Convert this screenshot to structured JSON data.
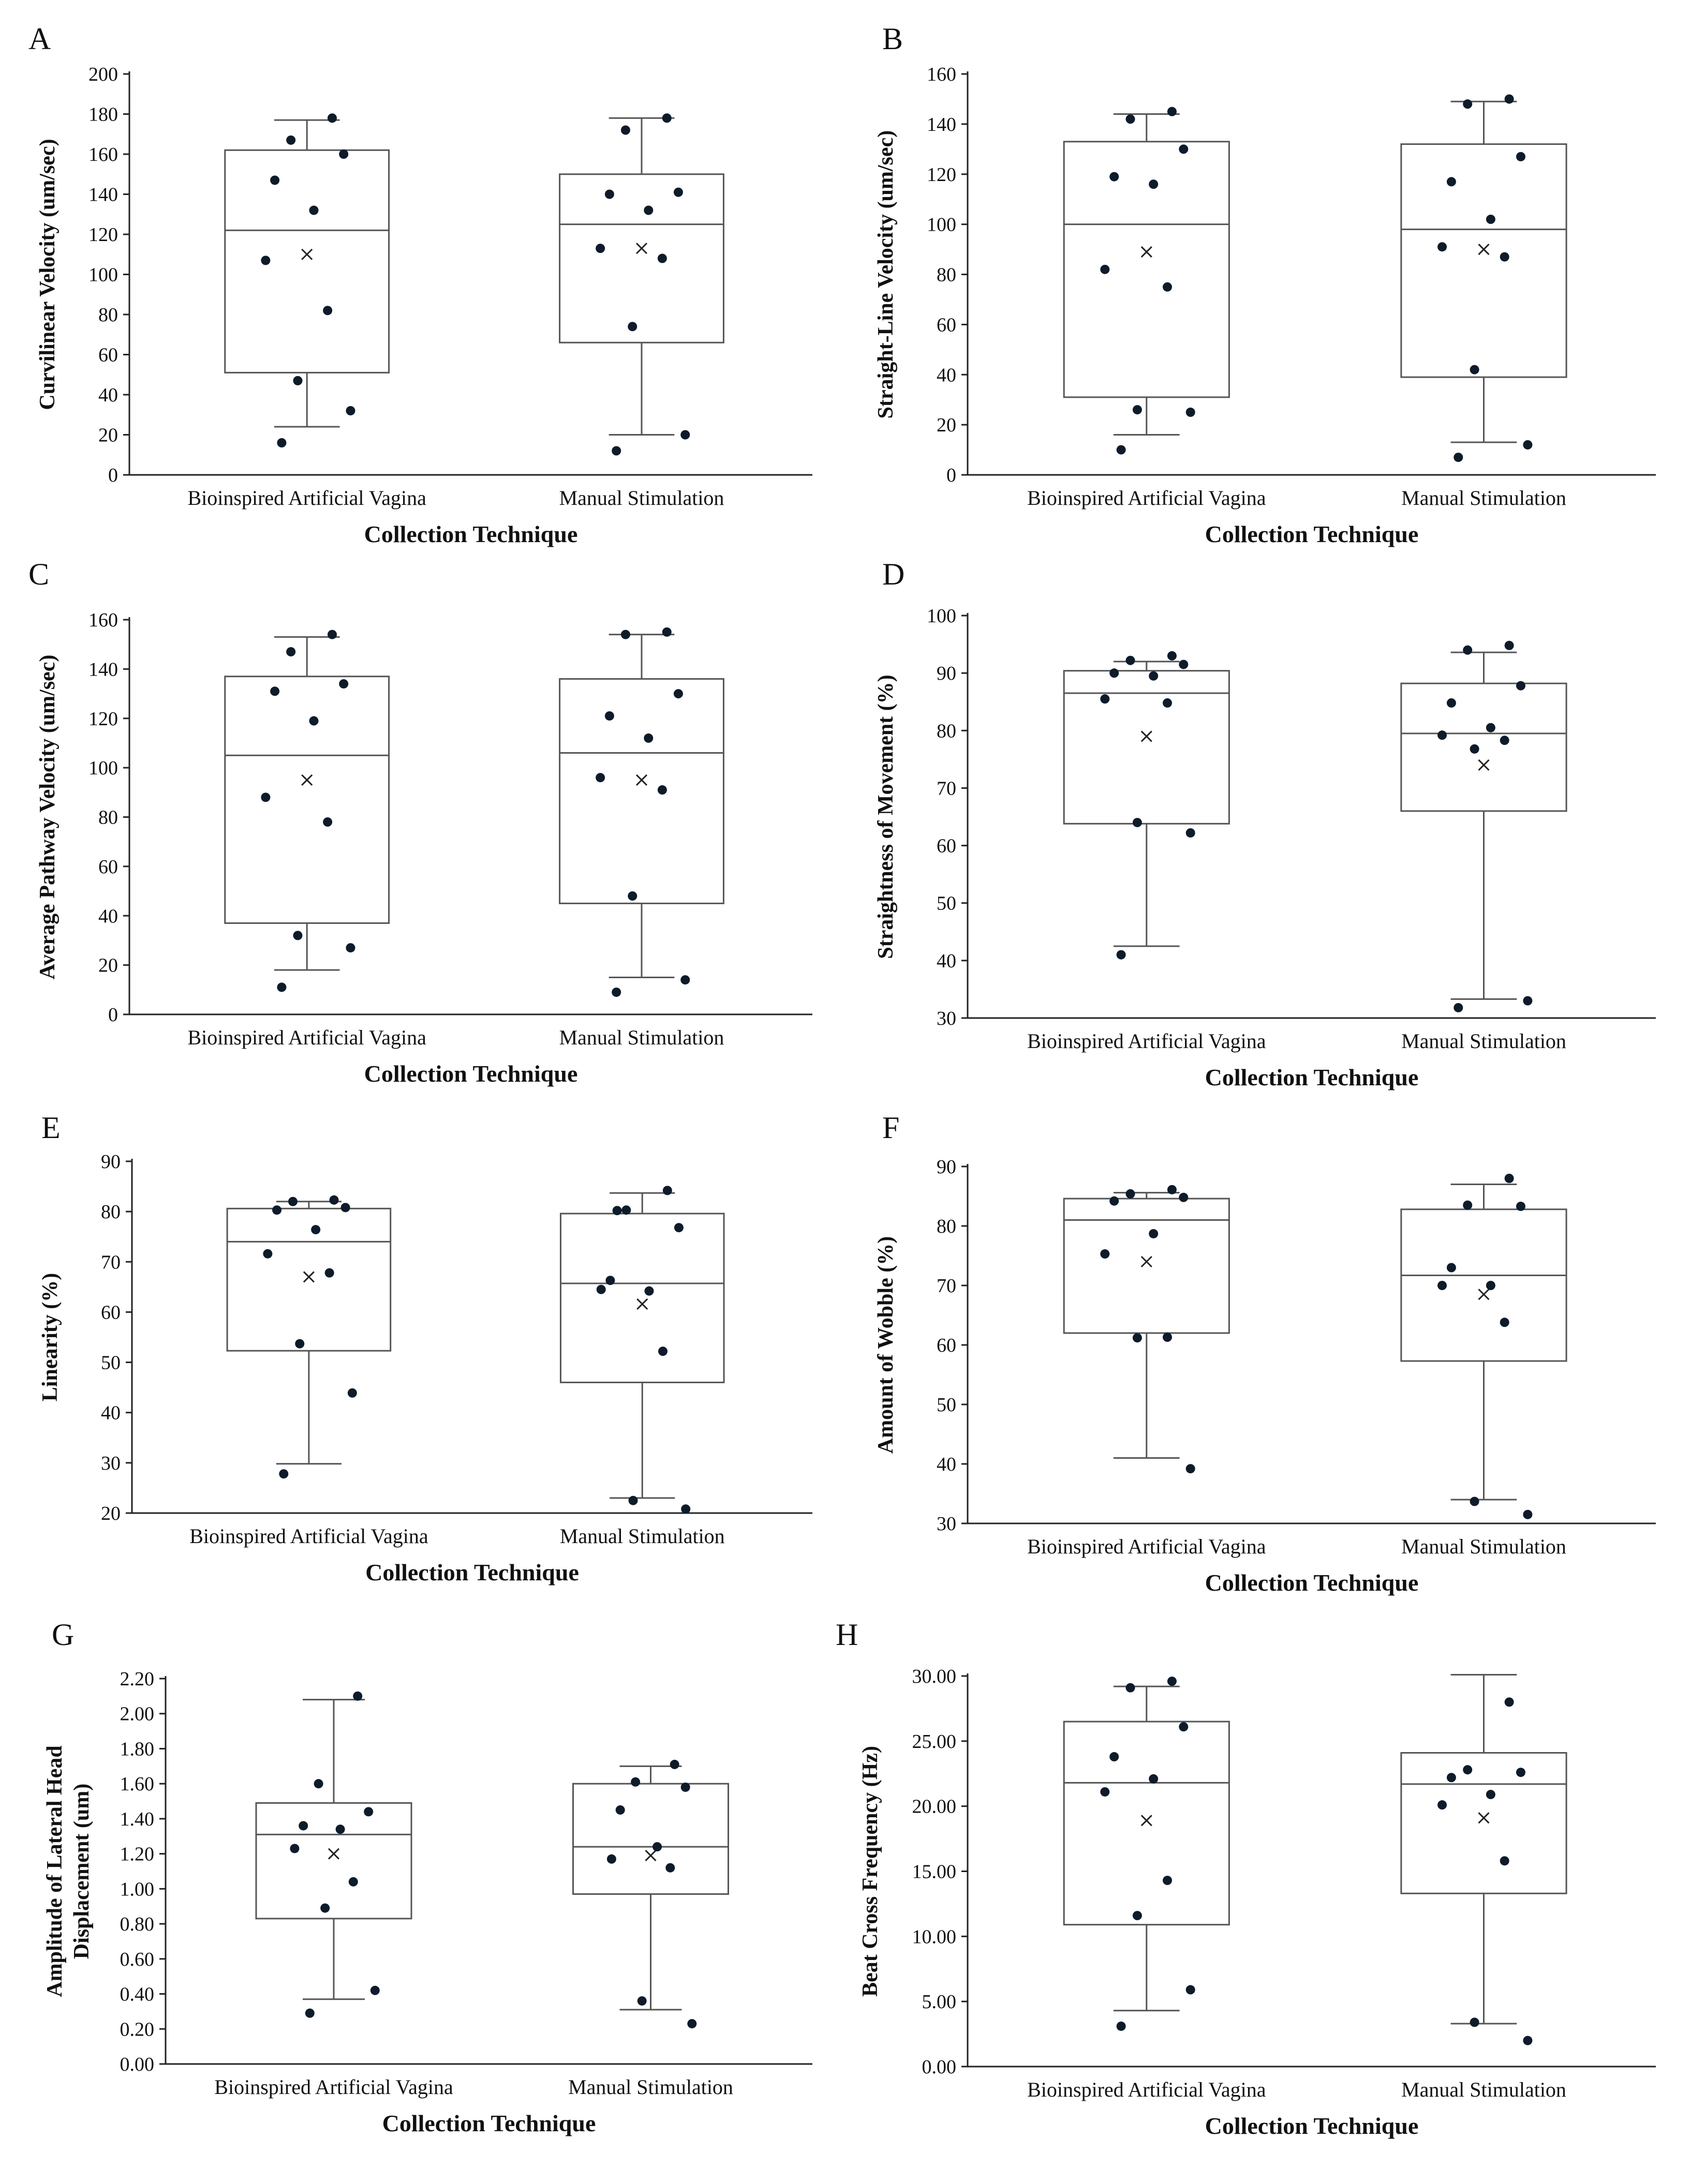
{
  "figure": {
    "background": "#ffffff",
    "box_color": "#555555",
    "point_color": "#0d1b2a"
  },
  "chart_data": [
    {
      "id": "A",
      "type": "box",
      "ylabel": "Curvilinear Velocity (um/sec)",
      "xlabel": "Collection Technique",
      "ylim": [
        0,
        200
      ],
      "yticks": [
        0,
        20,
        40,
        60,
        80,
        100,
        120,
        140,
        160,
        180,
        200
      ],
      "tick_decimals": 0,
      "categories": [
        "Bioinspired Artificial Vagina",
        "Manual Stimulation"
      ],
      "boxes": [
        {
          "min": 24,
          "q1": 51,
          "median": 122,
          "q3": 162,
          "max": 177,
          "mean": 110,
          "points": [
            178,
            167,
            160,
            147,
            132,
            107,
            82,
            47,
            32,
            16
          ]
        },
        {
          "min": 20,
          "q1": 66,
          "median": 125,
          "q3": 150,
          "max": 178,
          "mean": 113,
          "points": [
            178,
            172,
            141,
            140,
            132,
            113,
            108,
            74,
            20,
            12
          ]
        }
      ]
    },
    {
      "id": "B",
      "type": "box",
      "ylabel": "Straight-Line Velocity (um/sec)",
      "xlabel": "Collection Technique",
      "ylim": [
        0,
        160
      ],
      "yticks": [
        0,
        20,
        40,
        60,
        80,
        100,
        120,
        140,
        160
      ],
      "tick_decimals": 0,
      "categories": [
        "Bioinspired Artificial Vagina",
        "Manual Stimulation"
      ],
      "boxes": [
        {
          "min": 16,
          "q1": 31,
          "median": 100,
          "q3": 133,
          "max": 144,
          "mean": 89,
          "points": [
            145,
            142,
            130,
            119,
            116,
            82,
            75,
            26,
            25,
            10
          ]
        },
        {
          "min": 13,
          "q1": 39,
          "median": 98,
          "q3": 132,
          "max": 149,
          "mean": 90,
          "points": [
            150,
            148,
            127,
            117,
            102,
            91,
            87,
            42,
            12,
            7
          ]
        }
      ]
    },
    {
      "id": "C",
      "type": "box",
      "ylabel": "Average Pathway Velocity (um/sec)",
      "xlabel": "Collection Technique",
      "ylim": [
        0,
        160
      ],
      "yticks": [
        0,
        20,
        40,
        60,
        80,
        100,
        120,
        140,
        160
      ],
      "tick_decimals": 0,
      "categories": [
        "Bioinspired Artificial Vagina",
        "Manual Stimulation"
      ],
      "boxes": [
        {
          "min": 18,
          "q1": 37,
          "median": 105,
          "q3": 137,
          "max": 153,
          "mean": 95,
          "points": [
            154,
            147,
            134,
            131,
            119,
            88,
            78,
            32,
            27,
            11
          ]
        },
        {
          "min": 15,
          "q1": 45,
          "median": 106,
          "q3": 136,
          "max": 154,
          "mean": 95,
          "points": [
            155,
            154,
            130,
            121,
            112,
            96,
            91,
            48,
            14,
            9
          ]
        }
      ]
    },
    {
      "id": "D",
      "type": "box",
      "ylabel": "Straightness of Movement (%)",
      "xlabel": "Collection Technique",
      "ylim": [
        30,
        100
      ],
      "yticks": [
        30,
        40,
        50,
        60,
        70,
        80,
        90,
        100
      ],
      "tick_decimals": 0,
      "categories": [
        "Bioinspired Artificial Vagina",
        "Manual Stimulation"
      ],
      "boxes": [
        {
          "min": 42.5,
          "q1": 63.8,
          "median": 86.5,
          "q3": 90.4,
          "max": 92,
          "mean": 79,
          "points": [
            93,
            92.2,
            91.5,
            90,
            89.5,
            85.5,
            84.8,
            64,
            62.2,
            41
          ]
        },
        {
          "min": 33.3,
          "q1": 66,
          "median": 79.5,
          "q3": 88.2,
          "max": 93.6,
          "mean": 74,
          "points": [
            94.8,
            94,
            87.8,
            84.8,
            80.5,
            79.2,
            78.3,
            76.8,
            33,
            31.8
          ]
        }
      ]
    },
    {
      "id": "E",
      "type": "box",
      "ylabel": "Linearity (%)",
      "xlabel": "Collection Technique",
      "ylim": [
        20,
        90
      ],
      "yticks": [
        20,
        30,
        40,
        50,
        60,
        70,
        80,
        90
      ],
      "tick_decimals": 0,
      "categories": [
        "Bioinspired Artificial Vagina",
        "Manual Stimulation"
      ],
      "boxes": [
        {
          "min": 29.8,
          "q1": 52.3,
          "median": 74,
          "q3": 80.6,
          "max": 82,
          "mean": 67,
          "points": [
            82.3,
            82,
            80.8,
            80.3,
            76.4,
            71.6,
            67.8,
            53.7,
            43.9,
            27.8
          ]
        },
        {
          "min": 23,
          "q1": 46,
          "median": 65.7,
          "q3": 79.6,
          "max": 83.7,
          "mean": 61.6,
          "points": [
            84.2,
            80.3,
            76.8,
            66.3,
            64.2,
            64.5,
            52.2,
            22.5,
            20.8,
            80.2
          ]
        }
      ]
    },
    {
      "id": "F",
      "type": "box",
      "ylabel": "Amount of Wobble (%)",
      "xlabel": "Collection Technique",
      "ylim": [
        30,
        90
      ],
      "yticks": [
        30,
        40,
        50,
        60,
        70,
        80,
        90
      ],
      "tick_decimals": 0,
      "categories": [
        "Bioinspired Artificial Vagina",
        "Manual Stimulation"
      ],
      "boxes": [
        {
          "min": 41,
          "q1": 62,
          "median": 81,
          "q3": 84.6,
          "max": 85.6,
          "mean": 74,
          "points": [
            86.1,
            85.4,
            84.8,
            84.2,
            78.7,
            75.3,
            61.3,
            61.2,
            39.2
          ]
        },
        {
          "min": 34,
          "q1": 57.3,
          "median": 71.7,
          "q3": 82.8,
          "max": 87,
          "mean": 68.5,
          "points": [
            88,
            83.5,
            83.3,
            73,
            70,
            70,
            63.8,
            33.7,
            31.5
          ]
        }
      ]
    },
    {
      "id": "G",
      "type": "box",
      "ylabel": "Amplitude of Lateral Head Displacement (um)",
      "xlabel": "Collection Technique",
      "ylim": [
        0,
        2.2
      ],
      "yticks": [
        0,
        0.2,
        0.4,
        0.6,
        0.8,
        1.0,
        1.2,
        1.4,
        1.6,
        1.8,
        2.0,
        2.2
      ],
      "tick_decimals": 2,
      "categories": [
        "Bioinspired Artificial Vagina",
        "Manual Stimulation"
      ],
      "boxes": [
        {
          "min": 0.37,
          "q1": 0.83,
          "median": 1.31,
          "q3": 1.49,
          "max": 2.08,
          "mean": 1.2,
          "points": [
            2.1,
            1.6,
            1.44,
            1.36,
            1.34,
            1.23,
            1.04,
            0.89,
            0.42,
            0.29
          ]
        },
        {
          "min": 0.31,
          "q1": 0.97,
          "median": 1.24,
          "q3": 1.6,
          "max": 1.7,
          "mean": 1.19,
          "points": [
            1.71,
            1.61,
            1.58,
            1.45,
            1.24,
            1.17,
            1.12,
            0.36,
            0.23
          ]
        }
      ]
    },
    {
      "id": "H",
      "type": "box",
      "ylabel": "Beat Cross Frequency (Hz)",
      "xlabel": "Collection Technique",
      "ylim": [
        0,
        30
      ],
      "yticks": [
        0,
        5,
        10,
        15,
        20,
        25,
        30
      ],
      "tick_decimals": 2,
      "categories": [
        "Bioinspired Artificial Vagina",
        "Manual Stimulation"
      ],
      "boxes": [
        {
          "min": 4.3,
          "q1": 10.9,
          "median": 21.8,
          "q3": 26.5,
          "max": 29.2,
          "mean": 18.9,
          "points": [
            29.6,
            29.1,
            26.1,
            23.8,
            22.1,
            21.1,
            14.3,
            11.6,
            5.9,
            3.1
          ]
        },
        {
          "min": 3.3,
          "q1": 13.3,
          "median": 21.7,
          "q3": 24.1,
          "max": 30.1,
          "mean": 19.1,
          "points": [
            28,
            22.8,
            22.6,
            22.2,
            20.9,
            20.1,
            15.8,
            3.4,
            2.0
          ]
        }
      ]
    }
  ]
}
